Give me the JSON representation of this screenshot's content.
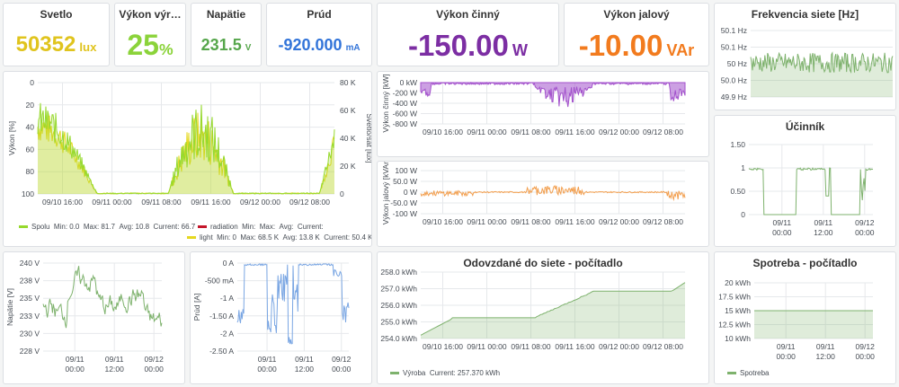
{
  "stats": {
    "svetlo": {
      "title": "Svetlo",
      "value": "50352",
      "unit": "lux",
      "color": "#e0c41e"
    },
    "vykon_vyr": {
      "title": "Výkon výr…",
      "value": "25",
      "unit": "%",
      "color": "#8bd33a"
    },
    "napatie": {
      "title": "Napätie",
      "value": "231.5",
      "unit": "V",
      "color": "#56a64b"
    },
    "prud": {
      "title": "Prúd",
      "value": "-920.000",
      "unit": "mA",
      "color": "#3274d9"
    },
    "vykon_cinny": {
      "title": "Výkon činný",
      "value": "-150.00",
      "unit": "W",
      "color": "#7c2ea3"
    },
    "vykon_jalovy": {
      "title": "Výkon jalový",
      "value": "-10.00",
      "unit": "VAr",
      "color": "#f27b1e"
    }
  },
  "colors": {
    "green": "#7eb26d",
    "lime": "#96d92d",
    "yellow": "#e5d81f",
    "purple": "#a352cc",
    "orange": "#f29f4f",
    "blue": "#7aa6e3",
    "red": "#c4162a",
    "grid": "#e6e8eb"
  },
  "chart_data": [
    {
      "id": "power_light",
      "type": "line",
      "title": "",
      "ylabel": "Výkon [%]",
      "y2label": "Svetlo/sat [lux]",
      "ylim": [
        0,
        100
      ],
      "y2lim": [
        0,
        80000
      ],
      "y_ticks": [
        "0",
        "20",
        "40",
        "60",
        "80",
        "100"
      ],
      "y2_ticks": [
        "0",
        "20 K",
        "40 K",
        "60 K",
        "80 K"
      ],
      "x_ticks": [
        "09/10 16:00",
        "09/11 00:00",
        "09/11 08:00",
        "09/11 16:00",
        "09/12 00:00",
        "09/12 08:00"
      ],
      "series": [
        {
          "name": "Spolu",
          "min": "Min: 0.0",
          "max": "Max: 81.7",
          "avg": "Avg: 10.8",
          "current": "Current: 66.7"
        },
        {
          "name": "radiation",
          "min": "Min:",
          "max": "Max:",
          "avg": "Avg:",
          "current": "Current:"
        },
        {
          "name": "light",
          "min": "Min: 0",
          "max": "Max: 68.5 K",
          "avg": "Avg: 13.8 K",
          "current": "Current: 50.4 K"
        }
      ]
    },
    {
      "id": "vykon_cinny_chart",
      "type": "area",
      "ylabel": "Výkon činný [kW]",
      "ylim": [
        -800,
        0
      ],
      "y_ticks": [
        "0 kW",
        "-200 W",
        "-400 W",
        "-600 W",
        "-800 W"
      ],
      "x_ticks": [
        "09/10 16:00",
        "09/11 00:00",
        "09/11 08:00",
        "09/11 16:00",
        "09/12 00:00",
        "09/12 08:00"
      ]
    },
    {
      "id": "frekvencia_chart",
      "type": "area",
      "title": "Frekvencia siete [Hz]",
      "ylim": [
        49.9,
        50.1
      ],
      "y_ticks": [
        "50.1 Hz",
        "50.1 Hz",
        "50 Hz",
        "50.0 Hz",
        "49.9 Hz"
      ]
    },
    {
      "id": "vykon_jalovy_chart",
      "type": "line",
      "ylabel": "Výkon jalový [kVAr]",
      "ylim": [
        -100,
        100
      ],
      "y_ticks": [
        "100 W",
        "50.0 W",
        "0 W",
        "-50.0 W",
        "-100 W"
      ],
      "x_ticks": [
        "09/10 16:00",
        "09/11 00:00",
        "09/11 08:00",
        "09/11 16:00",
        "09/12 00:00",
        "09/12 08:00"
      ]
    },
    {
      "id": "ucinnik_chart",
      "type": "line",
      "title": "Účinník",
      "ylim": [
        0,
        1.5
      ],
      "y_ticks": [
        "1.50",
        "1",
        "0.50",
        "0"
      ],
      "x_ticks": [
        [
          "09/11",
          "00:00"
        ],
        [
          "09/11",
          "12:00"
        ],
        [
          "09/12",
          "00:00"
        ]
      ]
    },
    {
      "id": "napatie_chart",
      "type": "line",
      "ylabel": "Napätie [V]",
      "ylim": [
        228,
        240
      ],
      "y_ticks": [
        "240 V",
        "238 V",
        "235 V",
        "233 V",
        "230 V",
        "228 V"
      ],
      "x_ticks": [
        [
          "09/11",
          "00:00"
        ],
        [
          "09/11",
          "12:00"
        ],
        [
          "09/12",
          "00:00"
        ]
      ]
    },
    {
      "id": "prud_chart",
      "type": "line",
      "ylabel": "Prúd [A]",
      "ylim": [
        -2.5,
        0
      ],
      "y_ticks": [
        "0 A",
        "-500 mA",
        "-1 A",
        "-1.50 A",
        "-2 A",
        "-2.50 A"
      ],
      "x_ticks": [
        [
          "09/11",
          "00:00"
        ],
        [
          "09/11",
          "12:00"
        ],
        [
          "09/12",
          "00:00"
        ]
      ]
    },
    {
      "id": "odovzdane_chart",
      "type": "area",
      "title": "Odovzdané do siete - počítadlo",
      "ylim": [
        254,
        258
      ],
      "y_ticks": [
        "258.0 kWh",
        "257.0 kWh",
        "256.0 kWh",
        "255.0 kWh",
        "254.0 kWh"
      ],
      "x_ticks": [
        "09/10 16:00",
        "09/11 00:00",
        "09/11 08:00",
        "09/11 16:00",
        "09/12 00:00",
        "09/12 08:00"
      ],
      "series": [
        {
          "name": "Výroba",
          "current": "Current: 257.370 kWh"
        }
      ]
    },
    {
      "id": "spotreba_chart",
      "type": "area",
      "title": "Spotreba - počítadlo",
      "ylim": [
        10,
        20
      ],
      "y_ticks": [
        "20 kWh",
        "17.5 kWh",
        "15 kWh",
        "12.5 kWh",
        "10 kWh"
      ],
      "x_ticks": [
        [
          "09/11",
          "00:00"
        ],
        [
          "09/11",
          "12:00"
        ],
        [
          "09/12",
          "00:00"
        ]
      ],
      "series": [
        {
          "name": "Spotreba"
        }
      ]
    }
  ]
}
